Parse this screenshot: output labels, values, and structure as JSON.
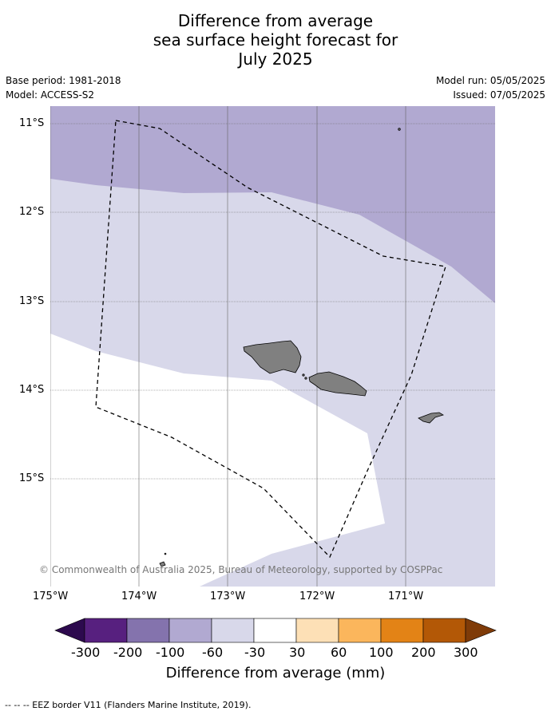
{
  "title": {
    "line1": "Difference from average",
    "line2": "sea surface height forecast for",
    "line3": "July 2025"
  },
  "meta": {
    "base_period": "Base period: 1981-2018",
    "model": "Model: ACCESS-S2",
    "model_run": "Model run: 05/05/2025",
    "issued": "Issued: 07/05/2025"
  },
  "map": {
    "lat_labels": [
      "11°S",
      "12°S",
      "13°S",
      "14°S",
      "15°S"
    ],
    "lon_labels": [
      "175°W",
      "174°W",
      "173°W",
      "172°W",
      "171°W"
    ],
    "copyright": "© Commonwealth of Australia 2025, Bureau of Meteorology, supported by COSPPac",
    "land_color": "#808080"
  },
  "colorbar": {
    "labels": [
      "-300",
      "-200",
      "-100",
      "-60",
      "-30",
      "30",
      "60",
      "100",
      "200",
      "300"
    ],
    "colors": [
      "#2d0a4e",
      "#57207f",
      "#8473ad",
      "#b1a9d1",
      "#d8d8ea",
      "#ffffff",
      "#fde0b6",
      "#fbb65c",
      "#e38316",
      "#b35806",
      "#7f3b08"
    ],
    "title": "Difference from average (mm)"
  },
  "footnote": "-- -- -- EEZ border V11 (Flanders Marine Institute, 2019)."
}
